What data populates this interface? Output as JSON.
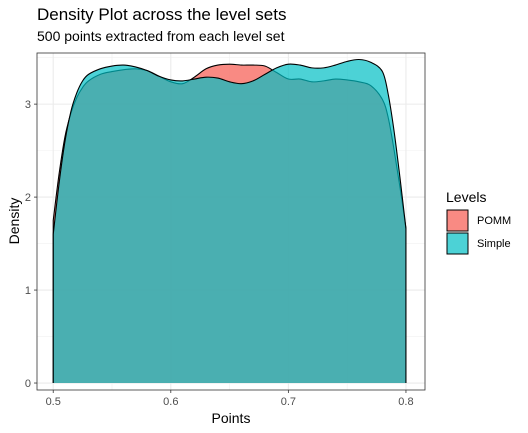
{
  "chart_data": {
    "type": "area",
    "title": "Density Plot across the level sets",
    "subtitle": "500 points extracted from each level set",
    "xlabel": "Points",
    "ylabel": "Density",
    "xlim": [
      0.4862,
      0.8162
    ],
    "ylim": [
      -0.075,
      3.55
    ],
    "xticks": [
      0.5,
      0.6,
      0.7,
      0.8
    ],
    "xtick_labels": [
      "0.5",
      "0.6",
      "0.7",
      "0.8"
    ],
    "yticks": [
      0,
      1,
      2,
      3
    ],
    "ytick_labels": [
      "0",
      "1",
      "2",
      "3"
    ],
    "grid": true,
    "legend": {
      "title": "Levels",
      "position": "right"
    },
    "series": [
      {
        "name": "POMM",
        "color": "#F8766D",
        "x": [
          0.5,
          0.505,
          0.51,
          0.515,
          0.52,
          0.525,
          0.53,
          0.54,
          0.55,
          0.56,
          0.57,
          0.58,
          0.59,
          0.6,
          0.61,
          0.62,
          0.63,
          0.64,
          0.65,
          0.66,
          0.67,
          0.68,
          0.69,
          0.7,
          0.71,
          0.72,
          0.73,
          0.74,
          0.75,
          0.76,
          0.77,
          0.78,
          0.785,
          0.79,
          0.795,
          0.8
        ],
        "values": [
          1.75,
          2.25,
          2.65,
          2.9,
          3.07,
          3.18,
          3.25,
          3.32,
          3.35,
          3.37,
          3.38,
          3.36,
          3.3,
          3.24,
          3.22,
          3.29,
          3.38,
          3.42,
          3.43,
          3.42,
          3.42,
          3.41,
          3.34,
          3.27,
          3.27,
          3.24,
          3.25,
          3.27,
          3.26,
          3.24,
          3.2,
          3.05,
          2.85,
          2.5,
          2.1,
          1.66
        ]
      },
      {
        "name": "Simple",
        "color": "#00BFC4",
        "x": [
          0.5,
          0.505,
          0.51,
          0.515,
          0.52,
          0.525,
          0.53,
          0.54,
          0.55,
          0.56,
          0.57,
          0.58,
          0.59,
          0.6,
          0.61,
          0.62,
          0.63,
          0.64,
          0.65,
          0.66,
          0.67,
          0.68,
          0.69,
          0.7,
          0.71,
          0.72,
          0.73,
          0.74,
          0.75,
          0.76,
          0.77,
          0.78,
          0.785,
          0.79,
          0.795,
          0.8
        ],
        "values": [
          1.6,
          2.15,
          2.6,
          2.92,
          3.12,
          3.25,
          3.32,
          3.38,
          3.41,
          3.42,
          3.4,
          3.36,
          3.3,
          3.26,
          3.25,
          3.27,
          3.29,
          3.28,
          3.24,
          3.22,
          3.25,
          3.32,
          3.39,
          3.43,
          3.42,
          3.39,
          3.39,
          3.42,
          3.46,
          3.48,
          3.45,
          3.35,
          3.1,
          2.7,
          2.2,
          1.66
        ]
      }
    ]
  }
}
